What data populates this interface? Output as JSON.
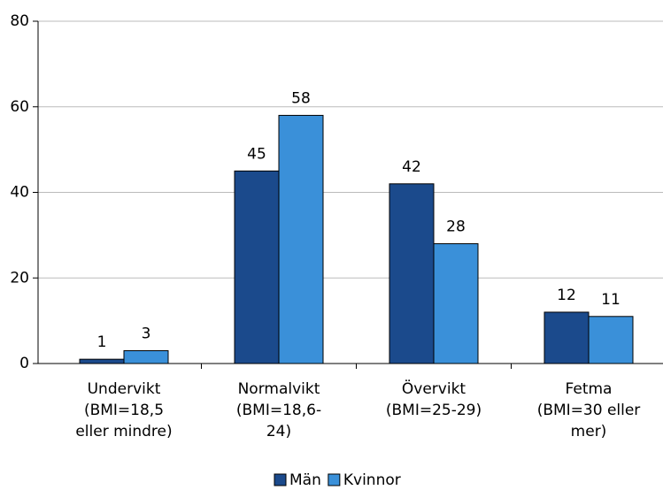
{
  "chart_data": {
    "type": "bar",
    "categories": [
      "Undervikt\n(BMI=18,5\neller mindre)",
      "Normalvikt\n(BMI=18,6-\n24)",
      "Övervikt\n(BMI=25-29)",
      "Fetma\n(BMI=30 eller\nmer)"
    ],
    "series": [
      {
        "name": "Män",
        "color": "#1b4a8c",
        "values": [
          1,
          45,
          42,
          12
        ]
      },
      {
        "name": "Kvinnor",
        "color": "#3a90d9",
        "values": [
          3,
          58,
          28,
          11
        ]
      }
    ],
    "ylim": [
      0,
      80
    ],
    "yticks": [
      0,
      20,
      40,
      60,
      80
    ],
    "grid": true,
    "legend": "bottom"
  }
}
